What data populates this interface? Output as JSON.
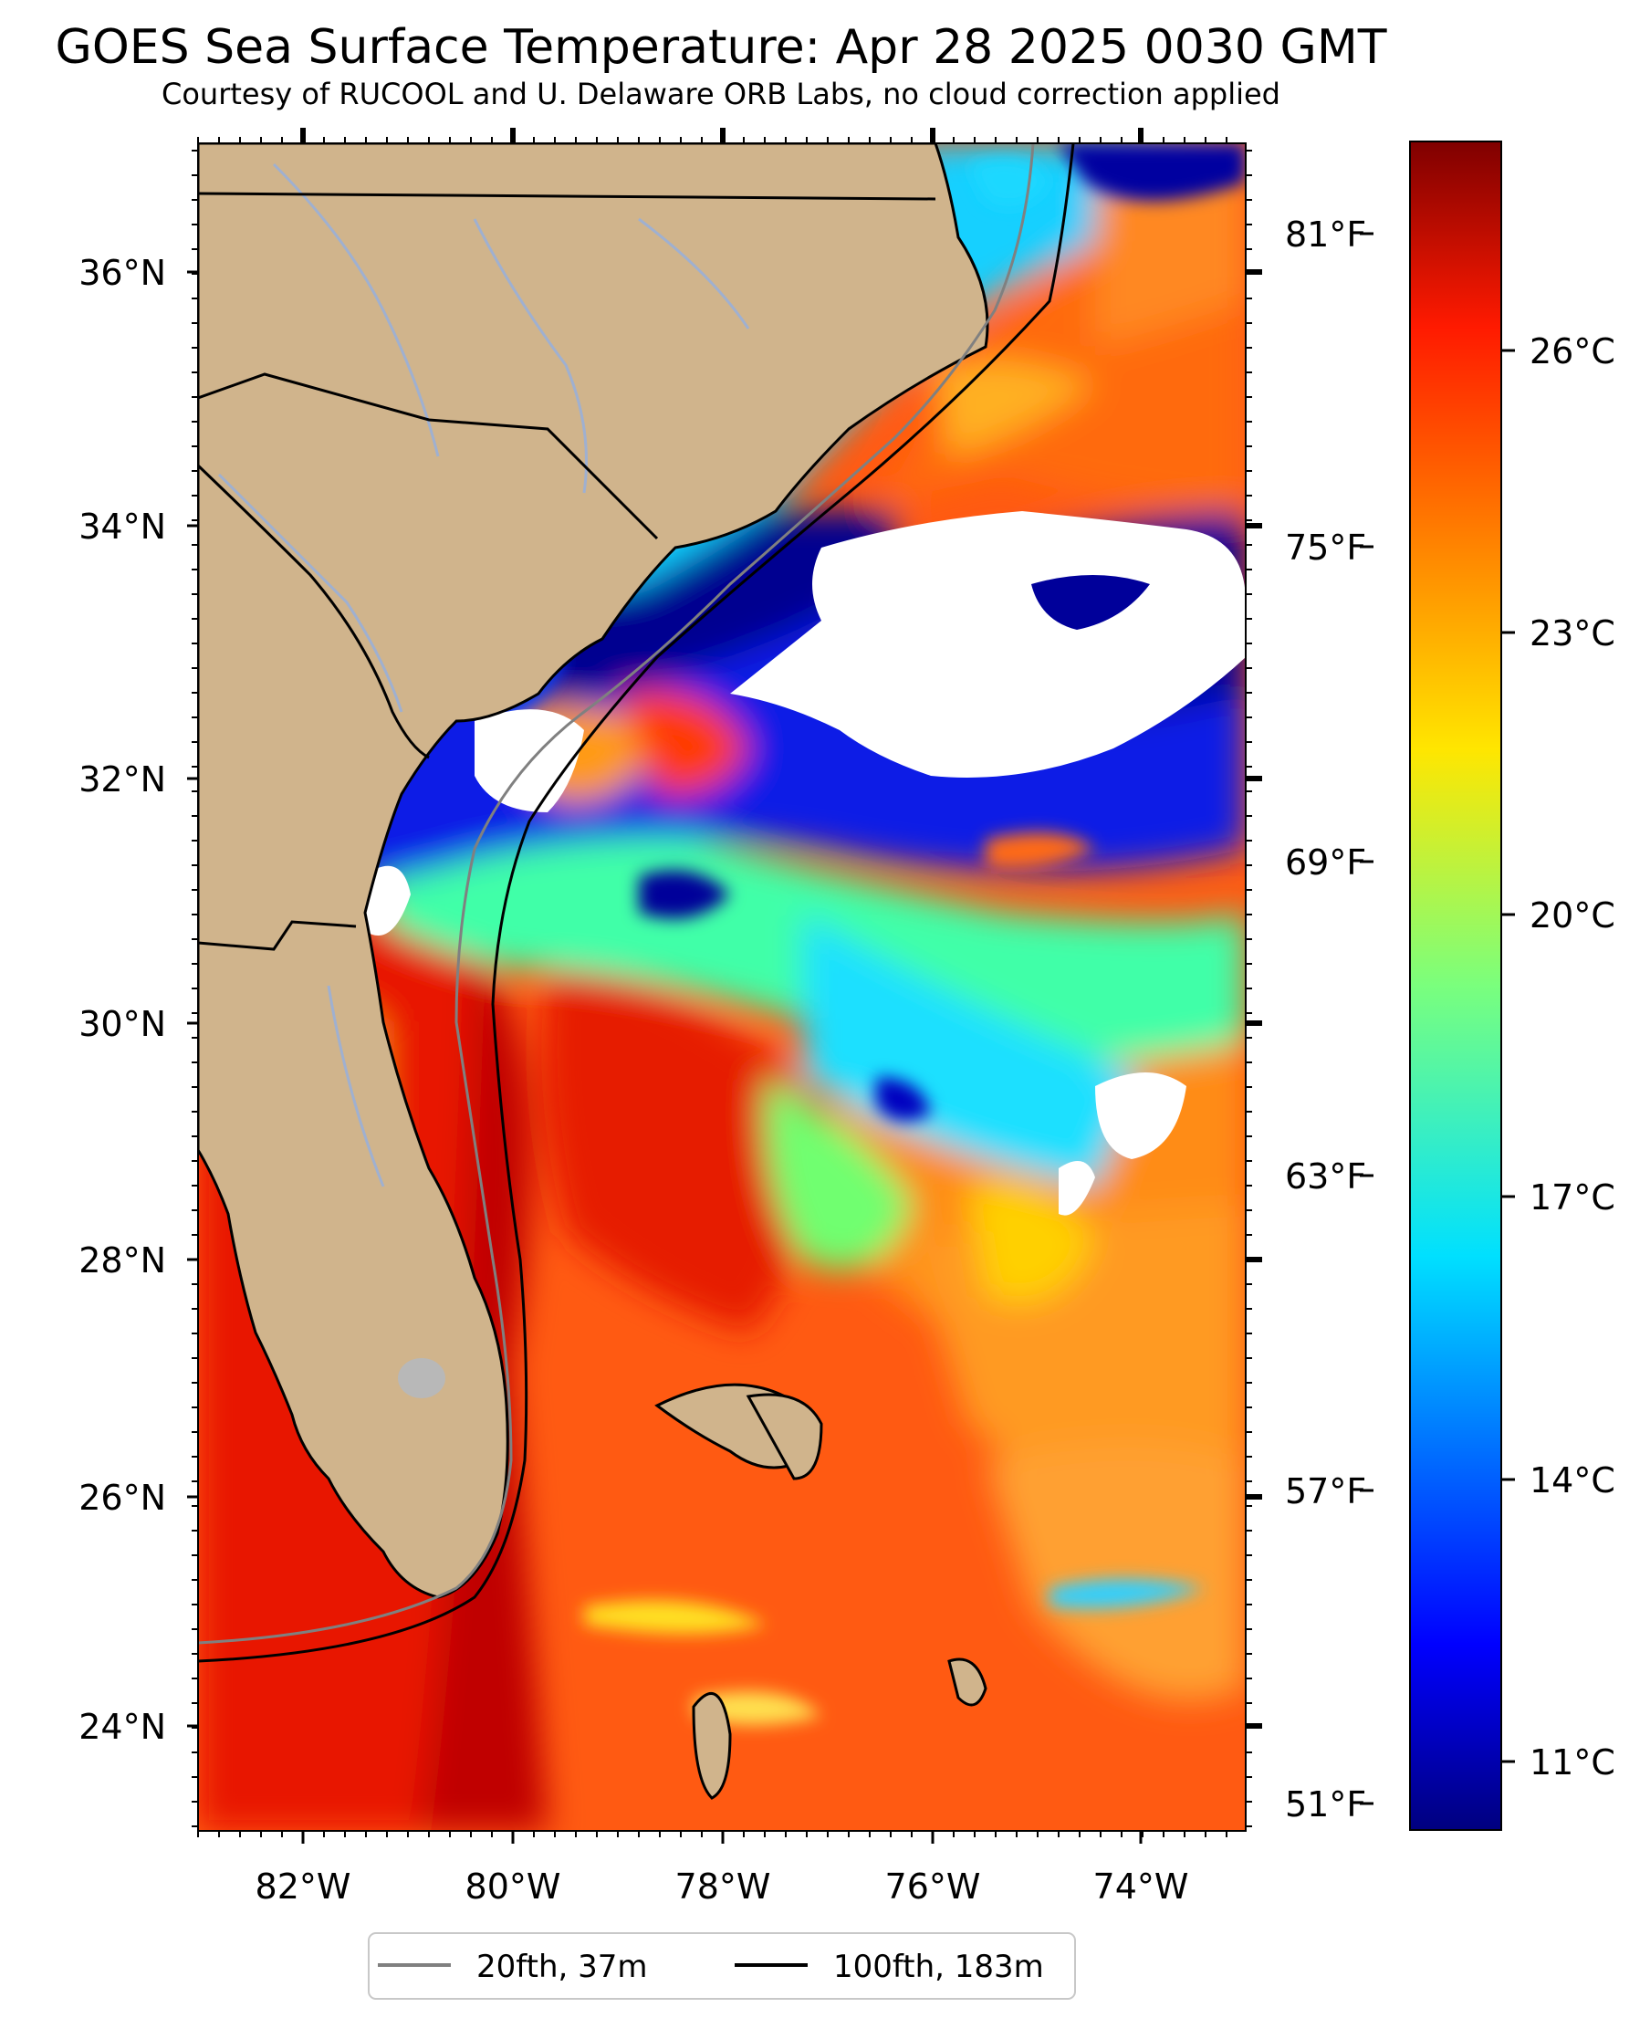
{
  "title": "GOES Sea Surface Temperature: Apr 28 2025 0030 GMT",
  "subtitle": "Courtesy of RUCOOL and U. Delaware ORB Labs, no cloud correction applied",
  "map": {
    "lon_range": [
      -83,
      -73
    ],
    "lat_range": [
      23.1,
      37
    ],
    "lat_ticks": [
      "36°N",
      "34°N",
      "32°N",
      "30°N",
      "28°N",
      "26°N",
      "24°N"
    ],
    "lon_ticks": [
      "82°W",
      "80°W",
      "78°W",
      "76°W",
      "74°W"
    ],
    "land_color": "#d0b48c",
    "cloud_color": "#ffffff"
  },
  "colorbar": {
    "units_c": [
      "26°C",
      "23°C",
      "20°C",
      "17°C",
      "14°C",
      "11°C"
    ],
    "units_f": [
      "81°F",
      "75°F",
      "69°F",
      "63°F",
      "57°F",
      "51°F"
    ],
    "colormap": "jet",
    "min_c": 9.8,
    "max_c": 27.8
  },
  "legend": {
    "items": [
      {
        "label": "20fth, 37m",
        "color": "#808080"
      },
      {
        "label": "100fth, 183m",
        "color": "#000000"
      }
    ]
  }
}
